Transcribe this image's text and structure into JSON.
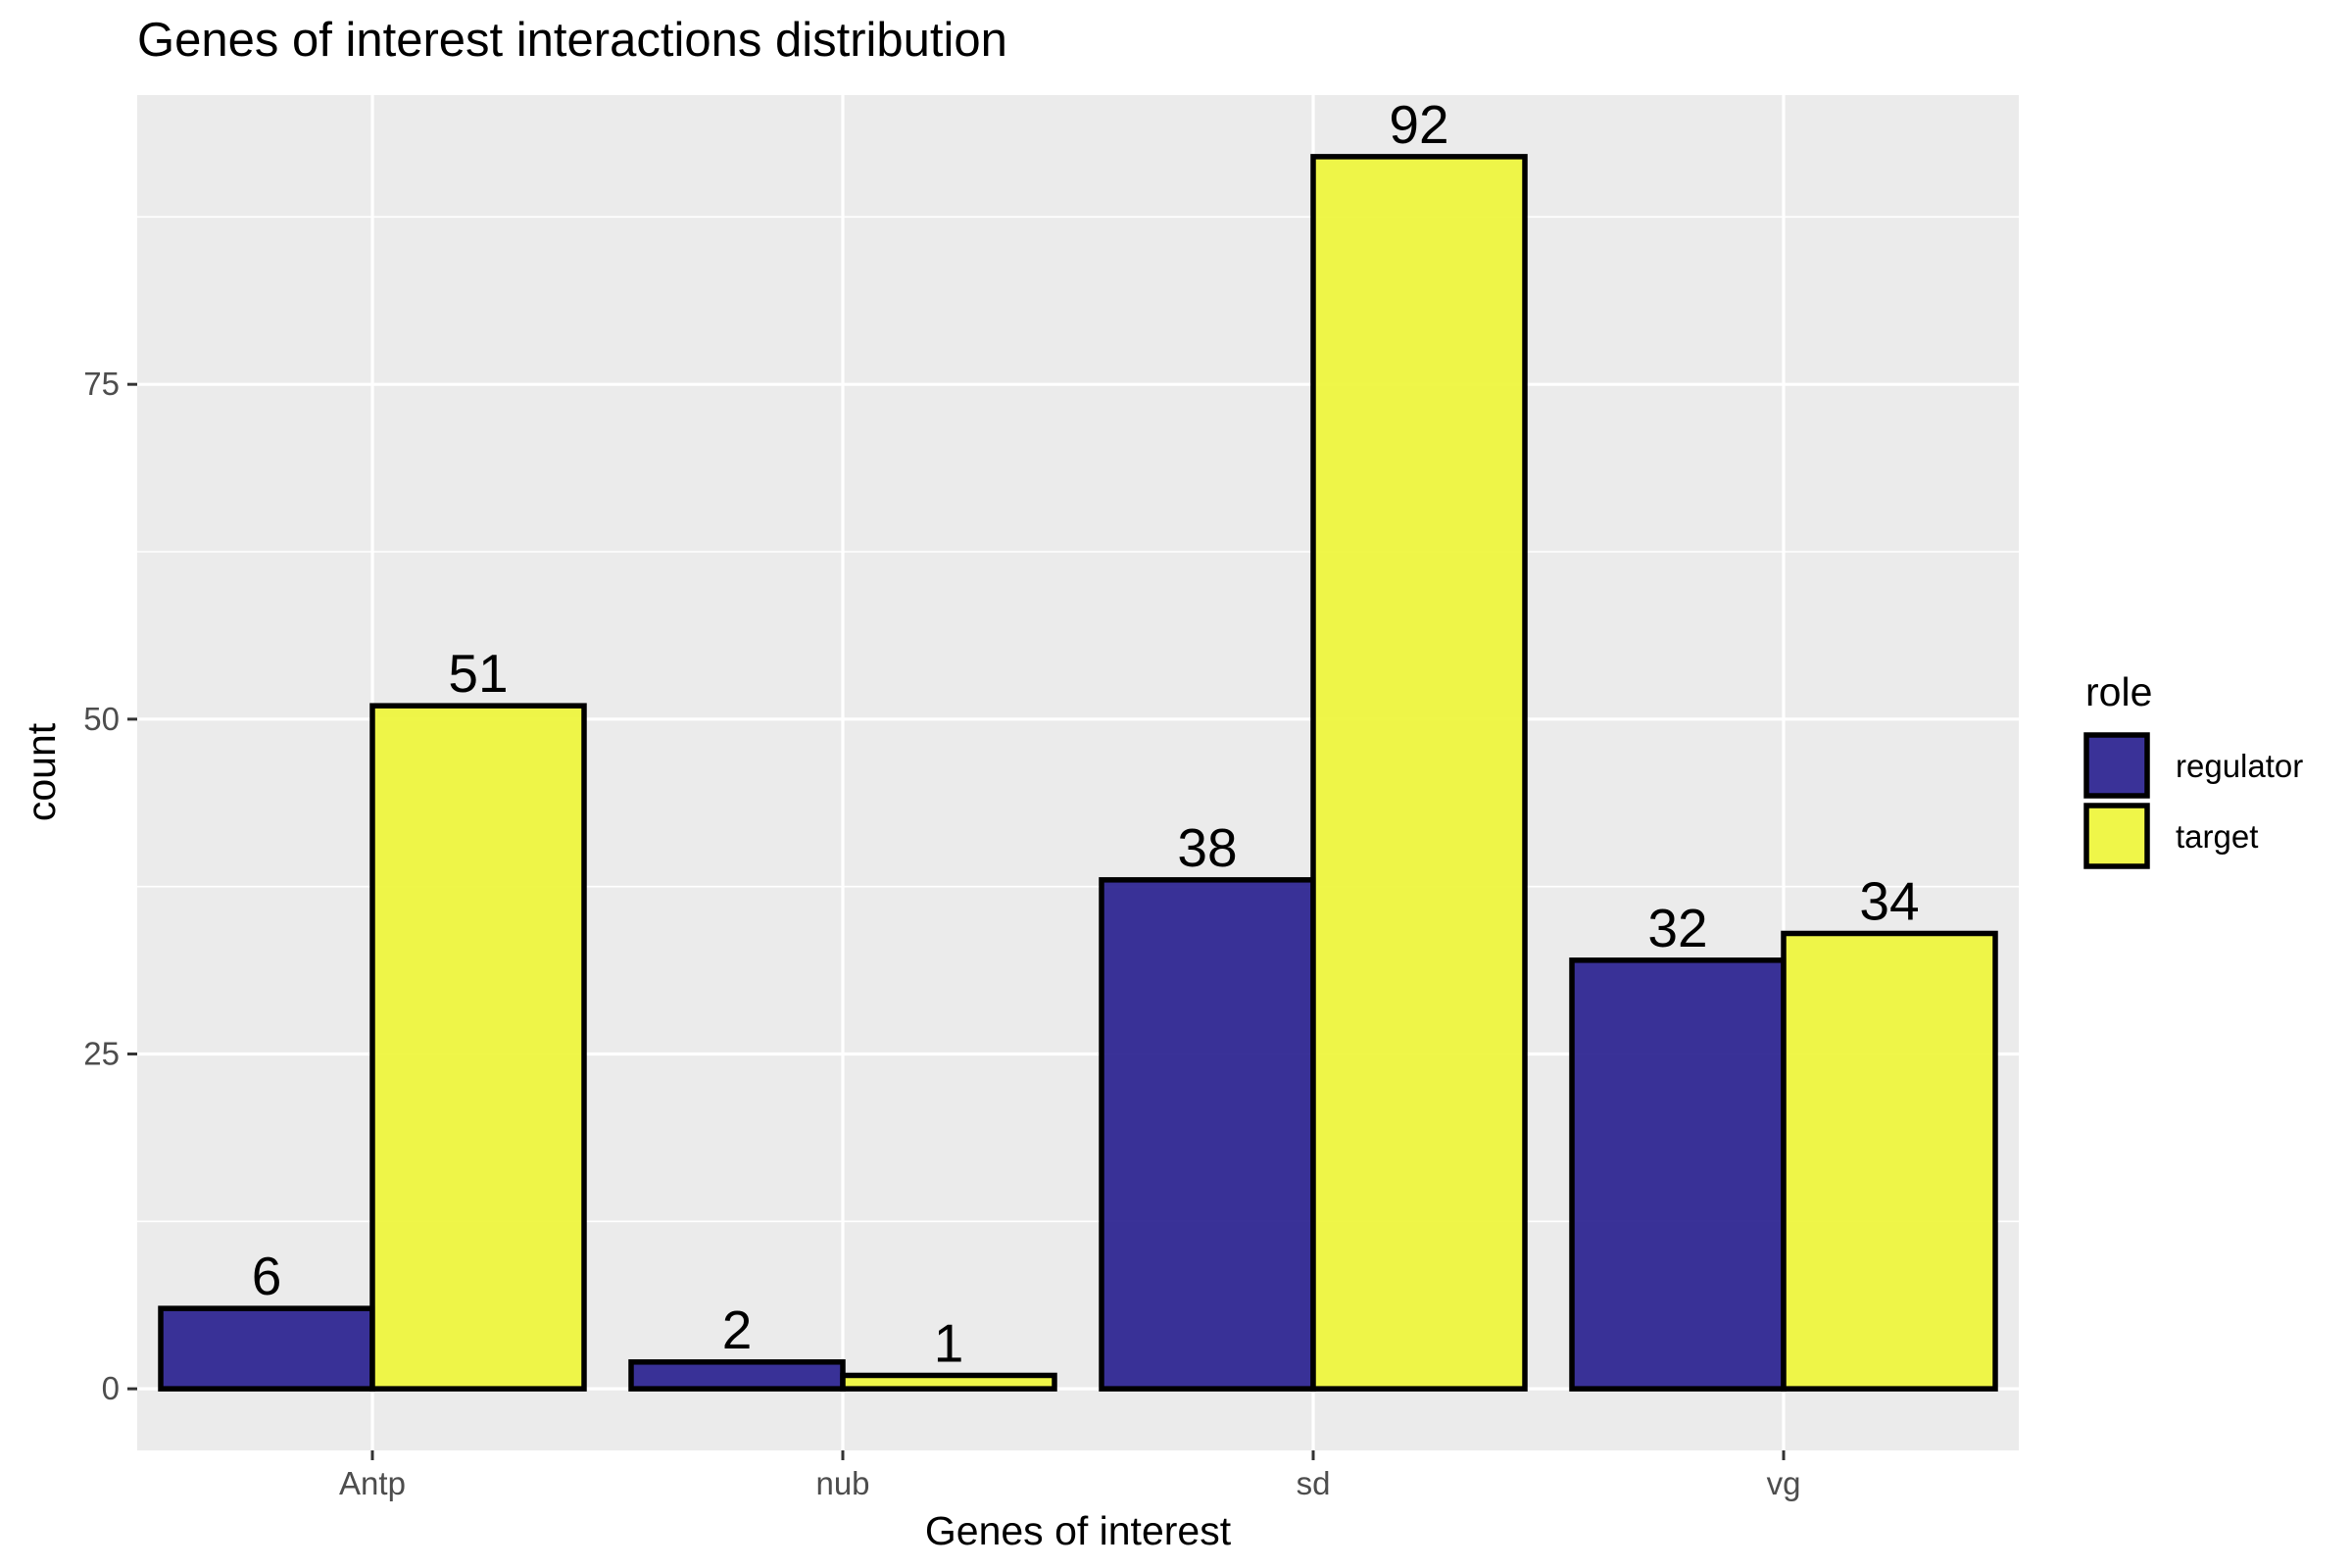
{
  "chart_data": {
    "type": "bar",
    "title": "Genes of interest interactions distribution",
    "xlabel": "Genes of interest",
    "ylabel": "count",
    "categories": [
      "Antp",
      "nub",
      "sd",
      "vg"
    ],
    "series": [
      {
        "name": "regulator",
        "color": "#29218F",
        "values": [
          6,
          2,
          38,
          32
        ]
      },
      {
        "name": "target",
        "color": "#EEF53A",
        "values": [
          51,
          1,
          92,
          34
        ]
      }
    ],
    "ylim": [
      -4.6,
      96.6
    ],
    "yticks": [
      0,
      25,
      50,
      75
    ],
    "ytick_labels": [
      "0",
      "25",
      "50",
      "75"
    ],
    "grid": true,
    "panel_background": "#EBEBEB",
    "legend": {
      "title": "role",
      "placement": "right",
      "entries": [
        "regulator",
        "target"
      ]
    }
  }
}
